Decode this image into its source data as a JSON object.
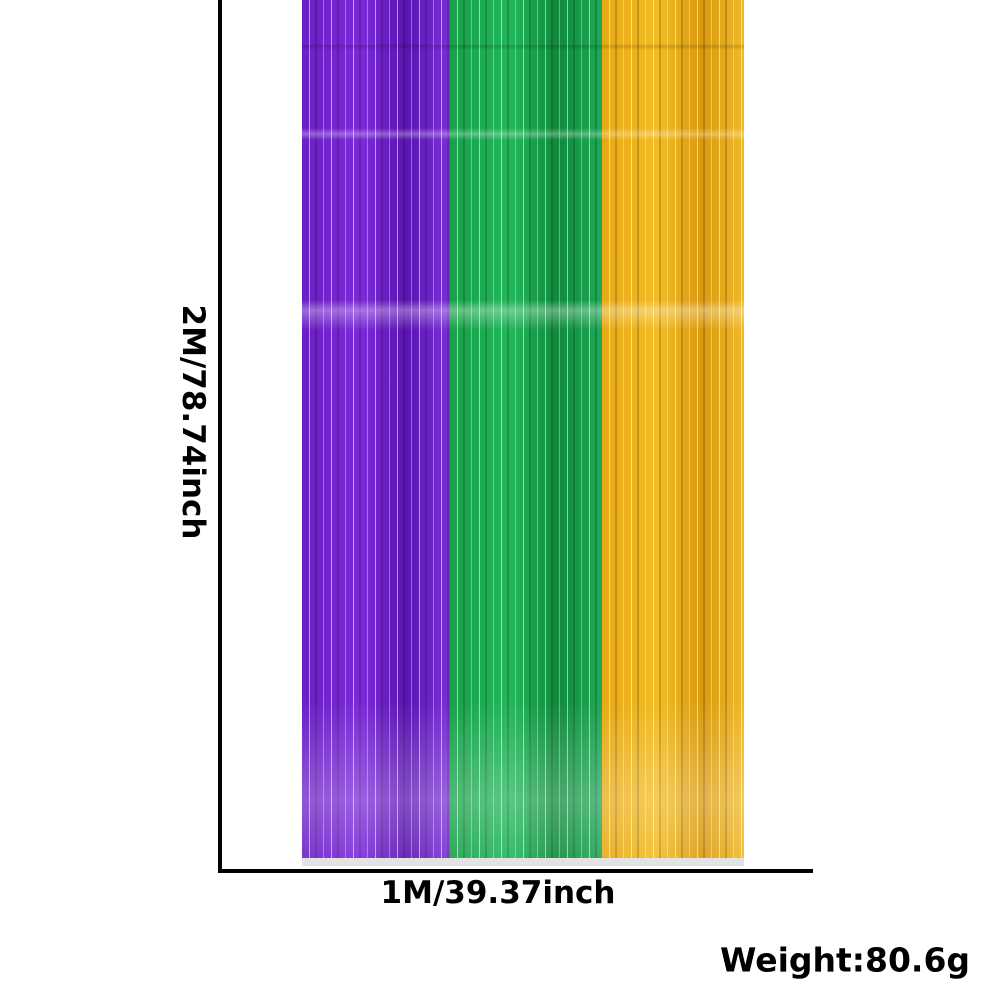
{
  "product": {
    "panels": [
      {
        "color_name": "purple",
        "color": "#7b2ad8"
      },
      {
        "color_name": "green",
        "color": "#22b65a"
      },
      {
        "color_name": "gold",
        "color": "#f2bc24"
      }
    ]
  },
  "dimensions": {
    "height_label": "2M/78.74inch",
    "width_label": "1M/39.37inch",
    "weight_label": "Weight:80.6g"
  }
}
